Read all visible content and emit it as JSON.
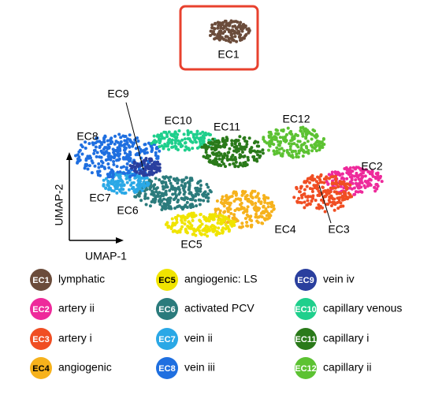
{
  "plot": {
    "x_axis": "UMAP-1",
    "y_axis": "UMAP-2"
  },
  "clusters": [
    {
      "id": "EC1",
      "name": "lymphatic",
      "color": "#6b4c3b"
    },
    {
      "id": "EC2",
      "name": "artery ii",
      "color": "#ee2a9b"
    },
    {
      "id": "EC3",
      "name": "artery i",
      "color": "#f04e23"
    },
    {
      "id": "EC4",
      "name": "angiogenic",
      "color": "#f6b21c"
    },
    {
      "id": "EC5",
      "name": "angiogenic: LS",
      "color": "#f0e400"
    },
    {
      "id": "EC6",
      "name": "activated PCV",
      "color": "#2b7b7c"
    },
    {
      "id": "EC7",
      "name": "vein ii",
      "color": "#2aa8e6"
    },
    {
      "id": "EC8",
      "name": "vein iii",
      "color": "#1f6fe0"
    },
    {
      "id": "EC9",
      "name": "vein iv",
      "color": "#2a3f9e"
    },
    {
      "id": "EC10",
      "name": "capillary venous",
      "color": "#1fcf8c"
    },
    {
      "id": "EC11",
      "name": "capillary i",
      "color": "#2a7a1a"
    },
    {
      "id": "EC12",
      "name": "capillary ii",
      "color": "#5cc232"
    }
  ]
}
